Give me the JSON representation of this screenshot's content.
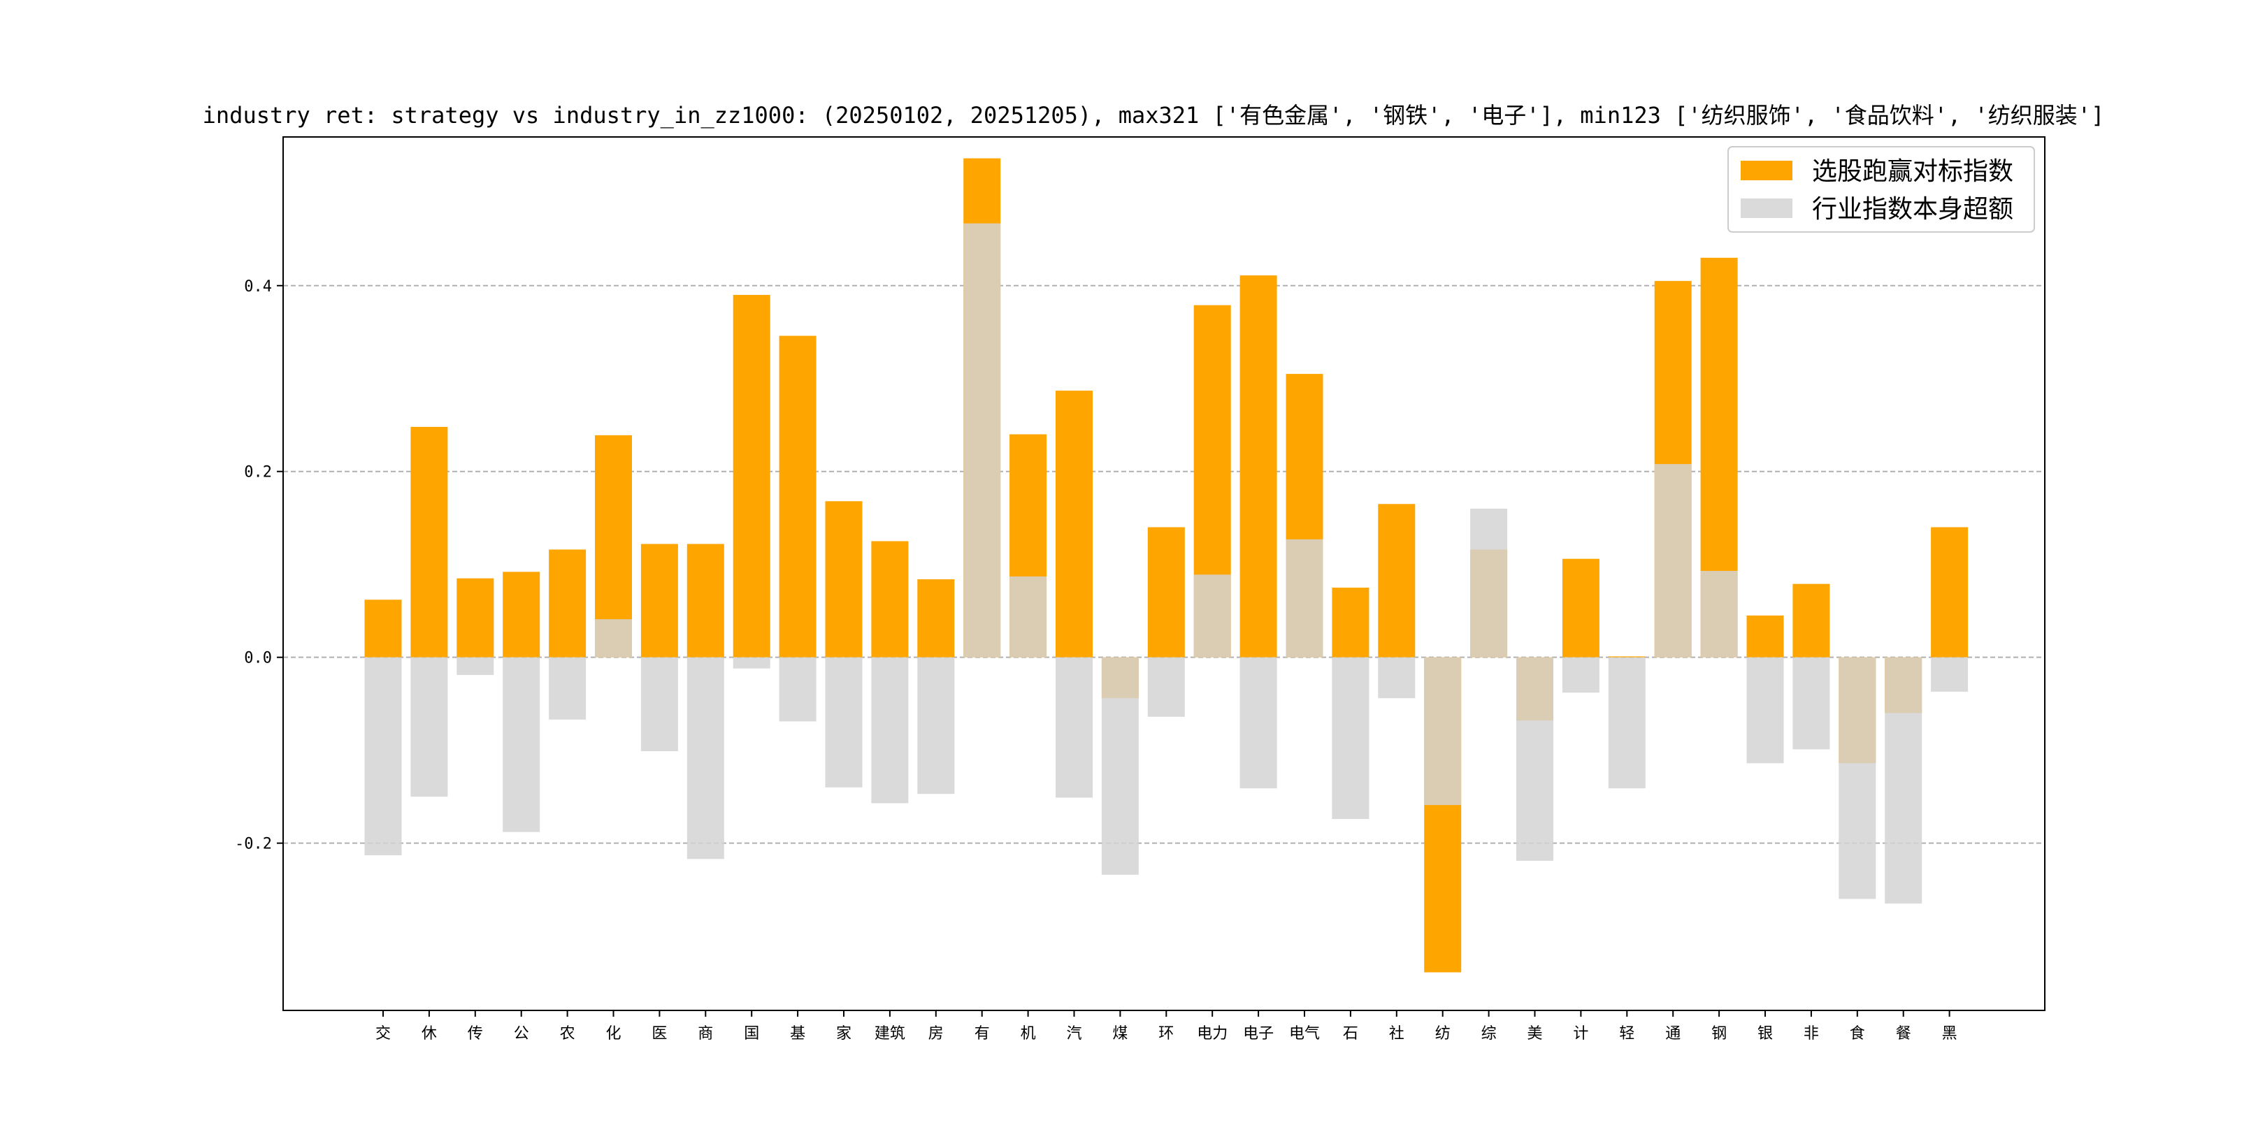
{
  "chart_data": {
    "type": "bar",
    "title": "industry ret: strategy vs industry_in_zz1000: (20250102, 20251205), max321 ['有色金属', '钢铁', '电子'], min123 ['纺织服饰', '食品饮料', '纺织服装']",
    "xlabel": "",
    "ylabel": "",
    "ylim": [
      -0.38,
      0.56
    ],
    "yticks": [
      -0.2,
      0.0,
      0.2,
      0.4
    ],
    "ytick_labels": [
      "-0.2",
      "0.0",
      "0.2",
      "0.4"
    ],
    "grid": "horizontal dashed",
    "legend_position": "top-right",
    "categories": [
      "交",
      "休",
      "传",
      "公",
      "农",
      "化",
      "医",
      "商",
      "国",
      "基",
      "家",
      "建筑",
      "房",
      "有",
      "机",
      "汽",
      "煤",
      "环",
      "电力",
      "电子",
      "电气",
      "石",
      "社",
      "纺",
      "综",
      "美",
      "计",
      "轻",
      "通",
      "钢",
      "银",
      "非",
      "食",
      "餐",
      "黑"
    ],
    "series": [
      {
        "name": "选股跑赢对标指数",
        "color": "#ffa500",
        "values": [
          0.062,
          0.248,
          0.085,
          0.092,
          0.116,
          0.239,
          0.122,
          0.122,
          0.39,
          0.346,
          0.168,
          0.125,
          0.084,
          0.537,
          0.24,
          0.287,
          -0.044,
          0.14,
          0.379,
          0.411,
          0.305,
          0.075,
          0.165,
          -0.339,
          0.116,
          -0.068,
          0.106,
          0.001,
          0.405,
          0.43,
          0.045,
          0.079,
          -0.114,
          -0.06,
          0.14
        ]
      },
      {
        "name": "行业指数本身超额",
        "color": "#d3d3d3",
        "values": [
          -0.213,
          -0.15,
          -0.019,
          -0.188,
          -0.067,
          0.041,
          -0.101,
          -0.217,
          -0.012,
          -0.069,
          -0.14,
          -0.157,
          -0.147,
          0.467,
          0.087,
          -0.151,
          -0.234,
          -0.064,
          0.089,
          -0.141,
          0.127,
          -0.174,
          -0.044,
          -0.159,
          0.16,
          -0.219,
          -0.038,
          -0.141,
          0.208,
          0.093,
          -0.114,
          -0.099,
          -0.26,
          -0.265,
          -0.037
        ]
      }
    ]
  }
}
